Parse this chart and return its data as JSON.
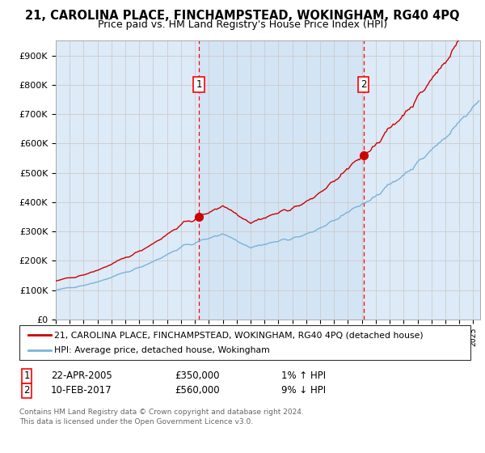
{
  "title": "21, CAROLINA PLACE, FINCHAMPSTEAD, WOKINGHAM, RG40 4PQ",
  "subtitle": "Price paid vs. HM Land Registry's House Price Index (HPI)",
  "background_color": "#ffffff",
  "plot_bg_color": "#ddeaf7",
  "grid_color": "#cccccc",
  "ylim": [
    0,
    950000
  ],
  "yticks": [
    0,
    100000,
    200000,
    300000,
    400000,
    500000,
    600000,
    700000,
    800000,
    900000
  ],
  "ytick_labels": [
    "£0",
    "£100K",
    "£200K",
    "£300K",
    "£400K",
    "£500K",
    "£600K",
    "£700K",
    "£800K",
    "£900K"
  ],
  "sale1_year": 2005.29,
  "sale1_price": 350000,
  "sale2_year": 2017.12,
  "sale2_price": 560000,
  "hpi_color": "#7ab3d9",
  "sale_color": "#cc0000",
  "legend_label1": "21, CAROLINA PLACE, FINCHAMPSTEAD, WOKINGHAM, RG40 4PQ (detached house)",
  "legend_label2": "HPI: Average price, detached house, Wokingham",
  "footer": "Contains HM Land Registry data © Crown copyright and database right 2024.\nThis data is licensed under the Open Government Licence v3.0.",
  "xstart_year": 1995,
  "xend_year": 2025,
  "title_fontsize": 10.5,
  "subtitle_fontsize": 9,
  "tick_fontsize": 8,
  "legend_fontsize": 8,
  "annot_fontsize": 9
}
